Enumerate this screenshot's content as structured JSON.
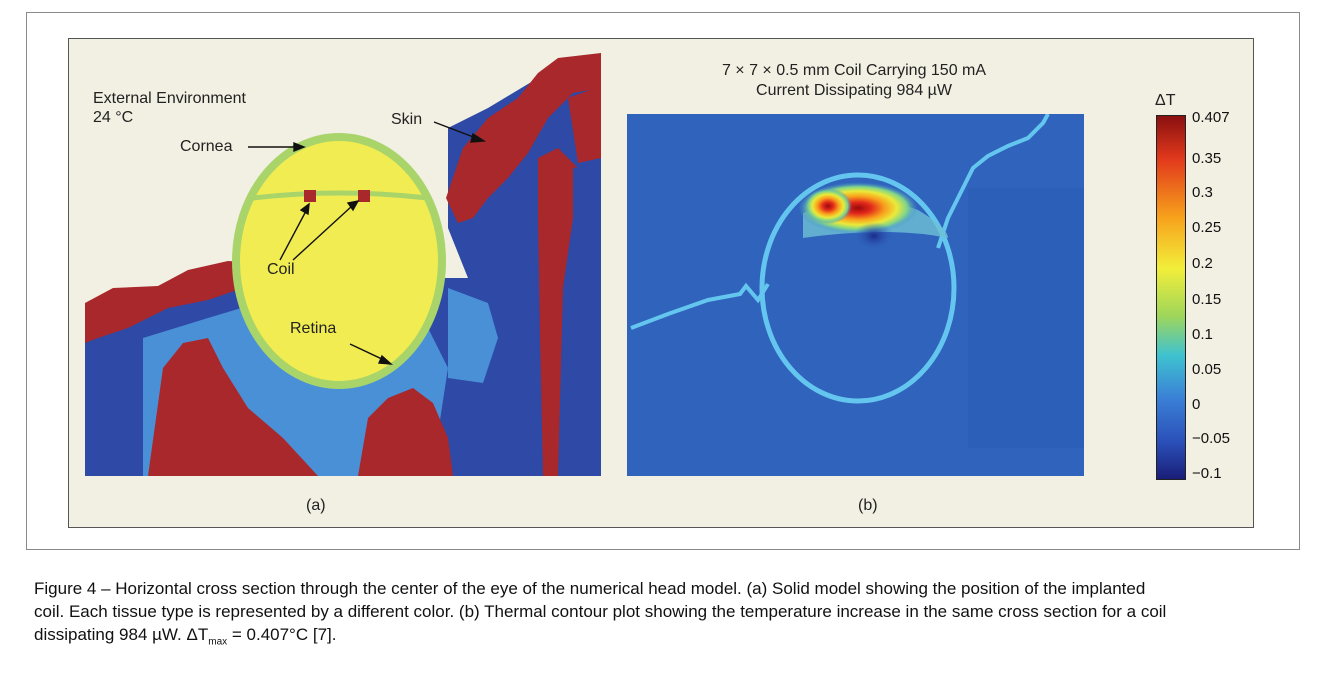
{
  "panel_a": {
    "env_line1": "External Environment",
    "env_line2": "24 °C",
    "cornea_label": "Cornea",
    "skin_label": "Skin",
    "coil_label": "Coil",
    "retina_label": "Retina",
    "sub_label": "(a)"
  },
  "panel_b": {
    "title_line1": "7 × 7 × 0.5 mm Coil Carrying 150 mA",
    "title_line2": "Current Dissipating 984 µW",
    "sub_label": "(b)"
  },
  "colorbar": {
    "title": "ΔT",
    "ticks": [
      "0.407",
      "0.35",
      "0.3",
      "0.25",
      "0.2",
      "0.15",
      "0.1",
      "0.05",
      "0",
      "−0.05",
      "−0.1"
    ],
    "range": [
      -0.1,
      0.407
    ]
  },
  "colors": {
    "skin": "#a9282c",
    "tissue_dark": "#2e49a6",
    "tissue_light": "#4a90d6",
    "eye": "#f1ec52",
    "eye_border": "#a9d46a",
    "thermal_bg": "#2f63bc",
    "contour": "#64c6ee"
  },
  "caption": {
    "line1": "Figure 4 – Horizontal cross section through the center of the eye of the numerical head model. (a) Solid model showing the position of the implanted",
    "line2": "coil.  Each tissue type is represented by a different color. (b) Thermal contour plot showing the temperature increase in the same cross section for a coil",
    "line3_pre": "dissipating 984 µW.  ΔT",
    "line3_sub": "max",
    "line3_post": " = 0.407°C [7]."
  }
}
